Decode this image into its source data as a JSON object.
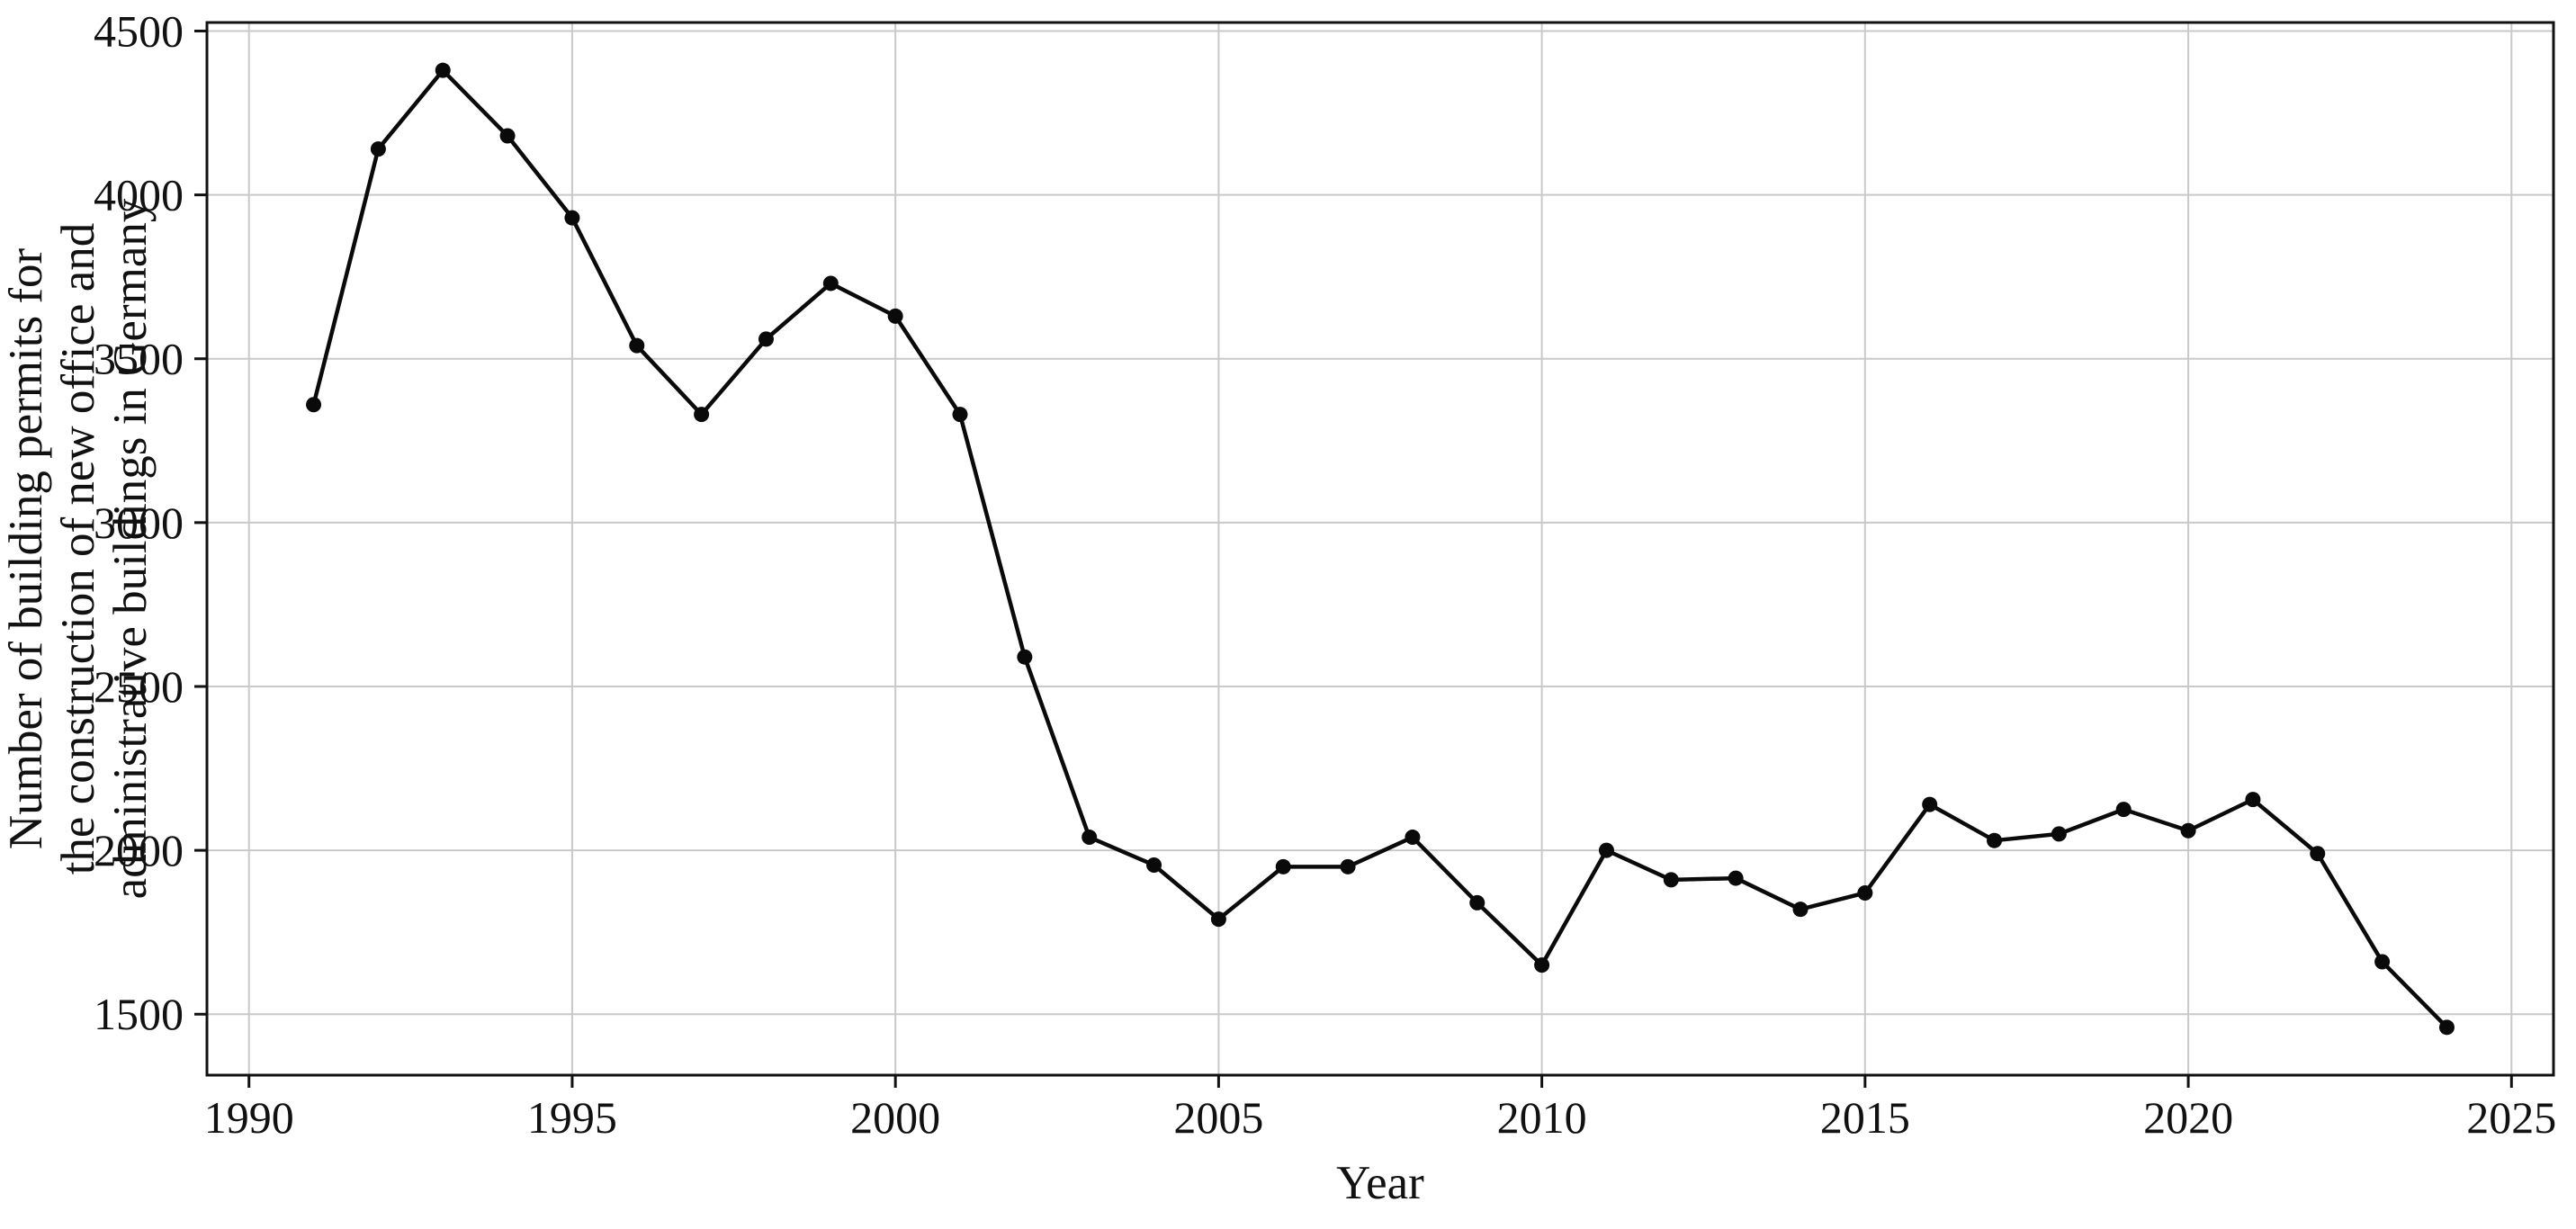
{
  "chart_data": {
    "type": "line",
    "title": "",
    "xlabel": "Year",
    "ylabel": "Number of building permits for the construction of new office and administrative buildings in Germany",
    "ylabel_lines": [
      "Number of building permits for",
      "the construction of new office and",
      "administrative buildings in Germany"
    ],
    "x": [
      1991,
      1992,
      1993,
      1994,
      1995,
      1996,
      1997,
      1998,
      1999,
      2000,
      2001,
      2002,
      2003,
      2004,
      2005,
      2006,
      2007,
      2008,
      2009,
      2010,
      2011,
      2012,
      2013,
      2014,
      2015,
      2016,
      2017,
      2018,
      2019,
      2020,
      2021,
      2022,
      2023,
      2024
    ],
    "values": [
      3360,
      4140,
      4380,
      4180,
      3930,
      3540,
      3330,
      3560,
      3730,
      3630,
      3330,
      2590,
      2040,
      1955,
      1790,
      1950,
      1950,
      2040,
      1840,
      1650,
      2000,
      1910,
      1915,
      1820,
      1870,
      2140,
      2030,
      2050,
      2125,
      2060,
      2155,
      1990,
      1660,
      1460
    ],
    "xlim": [
      1989.35,
      2025.65
    ],
    "ylim": [
      1314,
      4526
    ],
    "xticks": [
      1990,
      1995,
      2000,
      2005,
      2010,
      2015,
      2020,
      2025
    ],
    "yticks": [
      1500,
      2000,
      2500,
      3000,
      3500,
      4000,
      4500
    ],
    "grid": true,
    "legend": false,
    "line_color": "#0a0a0a",
    "marker_color": "#0a0a0a",
    "grid_color": "#c9c9c9",
    "spine_color": "#111111",
    "marker": "circle"
  }
}
